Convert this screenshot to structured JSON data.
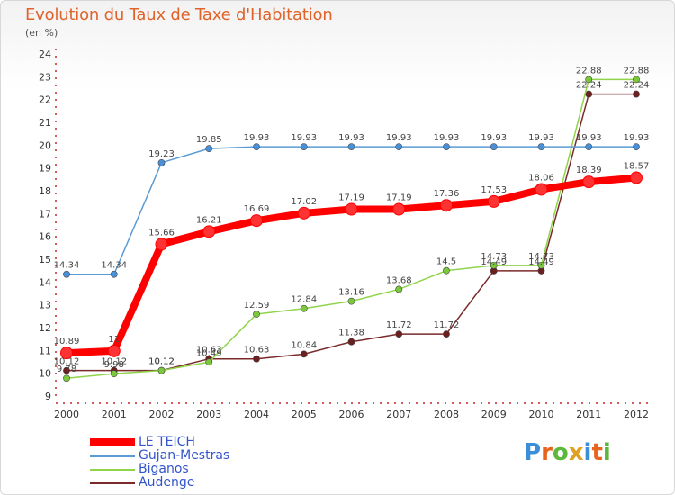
{
  "title": "Evolution du Taux de Taxe d'Habitation",
  "unit_note": "(en %)",
  "logo": {
    "text": "Proxiti",
    "letter_colors": [
      "#3a8fd8",
      "#e8641e",
      "#5cb83c",
      "#e0a020",
      "#3a8fd8",
      "#e8641e",
      "#5cb83c"
    ]
  },
  "chart_data": {
    "type": "line",
    "x": [
      "2000",
      "2001",
      "2002",
      "2003",
      "2004",
      "2005",
      "2006",
      "2007",
      "2008",
      "2009",
      "2010",
      "2011",
      "2012"
    ],
    "ylim": [
      9,
      24
    ],
    "yticks": [
      9,
      10,
      11,
      12,
      13,
      14,
      15,
      16,
      17,
      18,
      19,
      20,
      21,
      22,
      23,
      24
    ],
    "grid": false,
    "legend_position": "bottom-left",
    "series": [
      {
        "name": "LE TEICH",
        "color": "#ff0000",
        "point_color": "#ff3333",
        "emphasis": true,
        "values": [
          10.89,
          10.98,
          15.66,
          16.21,
          16.69,
          17.02,
          17.19,
          17.19,
          17.36,
          17.53,
          18.06,
          18.39,
          18.57
        ],
        "labels": [
          "10.89",
          "11",
          "15.66",
          "16.21",
          "16.69",
          "17.02",
          "17.19",
          "17.19",
          "17.36",
          "17.53",
          "18.06",
          "18.39",
          "18.57"
        ]
      },
      {
        "name": "Gujan-Mestras",
        "color": "#5a9bd4",
        "point_color": "#4a90d9",
        "emphasis": false,
        "values": [
          14.34,
          14.34,
          19.23,
          19.85,
          19.93,
          19.93,
          19.93,
          19.93,
          19.93,
          19.93,
          19.93,
          19.93,
          19.93
        ],
        "labels": [
          "14.34",
          "14.34",
          "19.23",
          "19.85",
          "19.93",
          "19.93",
          "19.93",
          "19.93",
          "19.93",
          "19.93",
          "19.93",
          "19.93",
          "19.93"
        ]
      },
      {
        "name": "Biganos",
        "color": "#8fd44a",
        "point_color": "#7cc83c",
        "emphasis": false,
        "values": [
          9.78,
          9.98,
          10.12,
          10.49,
          12.59,
          12.84,
          13.16,
          13.68,
          14.5,
          14.73,
          14.73,
          22.88,
          22.88
        ],
        "labels": [
          "9.78",
          "9.98",
          "10.12",
          "10.49",
          "12.59",
          "12.84",
          "13.16",
          "13.68",
          "14.5",
          "14.73",
          "14.73",
          "22.88",
          "22.88"
        ]
      },
      {
        "name": "Audenge",
        "color": "#7a2a2a",
        "point_color": "#6b1f1f",
        "emphasis": false,
        "values": [
          10.12,
          10.12,
          10.12,
          10.63,
          10.63,
          10.84,
          11.38,
          11.72,
          11.72,
          14.49,
          14.49,
          22.24,
          22.24
        ],
        "labels": [
          "10.12",
          "10.12",
          "10.12",
          "10.63",
          "10.63",
          "10.84",
          "11.38",
          "11.72",
          "11.72",
          "14.49",
          "14.49",
          "22.24",
          "22.24"
        ]
      }
    ]
  }
}
